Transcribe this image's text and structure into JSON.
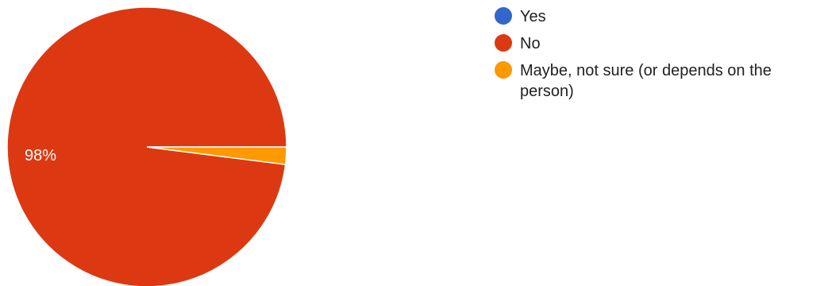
{
  "chart_data": {
    "type": "pie",
    "slices": [
      {
        "label": "Yes",
        "value": 0,
        "color": "#3366cc"
      },
      {
        "label": "No",
        "value": 98,
        "color": "#dc3912"
      },
      {
        "label": "Maybe, not sure (or depends on the person)",
        "value": 2,
        "color": "#ff9900"
      }
    ],
    "slice_labels": [
      {
        "slice": 1,
        "text": "98%"
      }
    ],
    "legend": {
      "position": "right",
      "items": [
        {
          "lines": [
            "Yes"
          ],
          "color": "#3366cc"
        },
        {
          "lines": [
            "No"
          ],
          "color": "#dc3912"
        },
        {
          "lines": [
            "Maybe, not sure (or depends on the",
            "person)"
          ],
          "color": "#ff9900"
        }
      ]
    }
  }
}
